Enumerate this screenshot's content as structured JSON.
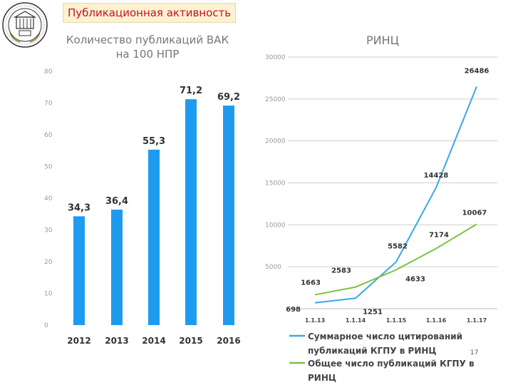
{
  "slide": {
    "title": "Публикационная активность",
    "page_number": "17"
  },
  "colors": {
    "bar": "#1e9bef",
    "line_citations": "#3aa8e8",
    "line_publications": "#7dc242",
    "title_text": "#c8102e",
    "title_bg": "#fdf2cf"
  },
  "chart_data": [
    {
      "type": "bar",
      "title_lines": [
        "Количество публикаций ВАК",
        "на 100 НПР"
      ],
      "categories": [
        "2012",
        "2013",
        "2014",
        "2015",
        "2016"
      ],
      "values": [
        34.3,
        36.4,
        55.3,
        71.2,
        69.2
      ],
      "value_labels": [
        "34,3",
        "36,4",
        "55,3",
        "71,2",
        "69,2"
      ],
      "yticks": [
        0,
        10,
        20,
        30,
        40,
        50,
        60,
        70,
        80
      ],
      "ylim": [
        0,
        80
      ],
      "grid": false
    },
    {
      "type": "line",
      "title": "РИНЦ",
      "x": [
        "1.1.13",
        "1.1.14",
        "1.1.15",
        "1.1.16",
        "1.1.17"
      ],
      "yticks": [
        5000,
        10000,
        15000,
        20000,
        25000,
        30000
      ],
      "ylim": [
        0,
        30000
      ],
      "grid": true,
      "legend_position": "bottom",
      "series": [
        {
          "name_lines": [
            "Суммарное число цитирований",
            "публикаций КГПУ в РИНЦ"
          ],
          "color": "#3aa8e8",
          "values": [
            698,
            1251,
            5582,
            14428,
            26486
          ],
          "value_labels": [
            "698",
            "1251",
            "5582",
            "14428",
            "26486"
          ]
        },
        {
          "name_lines": [
            "Общее число публикаций КГПУ в",
            "РИНЦ"
          ],
          "color": "#7dc242",
          "values": [
            1663,
            2583,
            4633,
            7174,
            10067
          ],
          "value_labels": [
            "1663",
            "2583",
            "4633",
            "7174",
            "10067"
          ]
        }
      ]
    }
  ]
}
